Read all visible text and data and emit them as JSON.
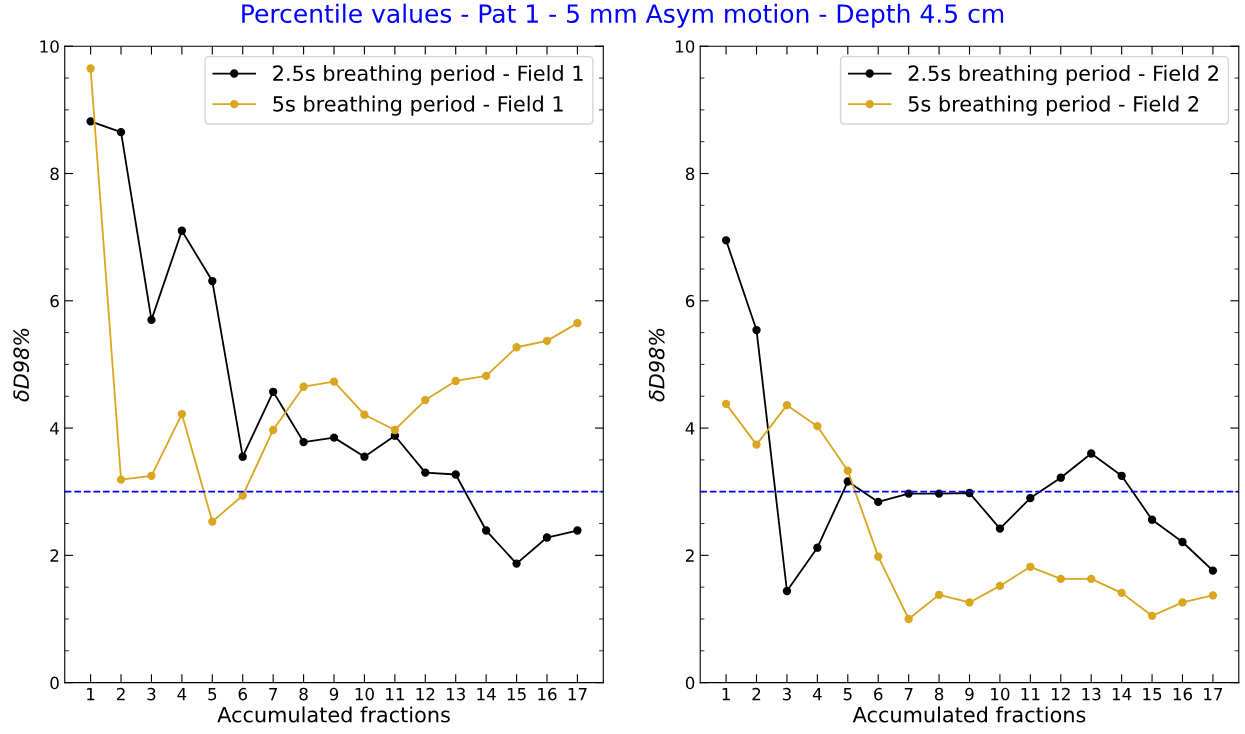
{
  "chart_data": [
    {
      "type": "line",
      "title": "Percentile values - Pat 1 - 5 mm Asym motion - Depth 4.5 cm",
      "xlabel": "Accumulated fractions",
      "ylabel": "δD98%",
      "x": [
        1,
        2,
        3,
        4,
        5,
        6,
        7,
        8,
        9,
        10,
        11,
        12,
        13,
        14,
        15,
        16,
        17
      ],
      "xlim": [
        0.15,
        17.85
      ],
      "xticks": [
        1,
        2,
        3,
        4,
        5,
        6,
        7,
        8,
        9,
        10,
        11,
        12,
        13,
        14,
        15,
        16,
        17
      ],
      "ylim": [
        0,
        10
      ],
      "yticks": [
        0,
        2,
        4,
        6,
        8,
        10
      ],
      "marker": "circle",
      "line_style": "solid",
      "legend": "top right",
      "grid": false,
      "series": [
        {
          "name": "2.5s breathing period - Field 1",
          "color": "#000000",
          "values": [
            8.82,
            8.65,
            5.7,
            7.1,
            6.31,
            3.55,
            4.57,
            3.78,
            3.85,
            3.55,
            3.88,
            3.3,
            3.27,
            2.39,
            1.87,
            2.28,
            2.39
          ]
        },
        {
          "name": "5s breathing period - Field 1",
          "color": "#daa520",
          "values": [
            9.65,
            3.19,
            3.25,
            4.22,
            2.53,
            2.94,
            3.97,
            4.65,
            4.73,
            4.21,
            3.97,
            4.44,
            4.74,
            4.82,
            5.27,
            5.37,
            5.65
          ]
        }
      ],
      "ref_lines": [
        {
          "axis": "y",
          "value": 3,
          "color": "#0000ff",
          "line_style": "dashed"
        }
      ]
    },
    {
      "type": "line",
      "xlabel": "Accumulated fractions",
      "ylabel": "δD98%",
      "x": [
        1,
        2,
        3,
        4,
        5,
        6,
        7,
        8,
        9,
        10,
        11,
        12,
        13,
        14,
        15,
        16,
        17
      ],
      "xlim": [
        0.15,
        17.85
      ],
      "xticks": [
        1,
        2,
        3,
        4,
        5,
        6,
        7,
        8,
        9,
        10,
        11,
        12,
        13,
        14,
        15,
        16,
        17
      ],
      "ylim": [
        0,
        10
      ],
      "yticks": [
        0,
        2,
        4,
        6,
        8,
        10
      ],
      "marker": "circle",
      "line_style": "solid",
      "legend": "top right",
      "grid": false,
      "series": [
        {
          "name": "2.5s breathing period - Field 2",
          "color": "#000000",
          "values": [
            6.95,
            5.54,
            1.44,
            2.12,
            3.16,
            2.84,
            2.97,
            2.97,
            2.98,
            2.42,
            2.9,
            3.22,
            3.6,
            3.25,
            2.56,
            2.21,
            1.76
          ]
        },
        {
          "name": "5s breathing period - Field 2",
          "color": "#daa520",
          "values": [
            4.38,
            3.74,
            4.36,
            4.03,
            3.33,
            1.98,
            1.0,
            1.38,
            1.26,
            1.52,
            1.82,
            1.63,
            1.63,
            1.41,
            1.05,
            1.26,
            1.37
          ]
        }
      ],
      "ref_lines": [
        {
          "axis": "y",
          "value": 3,
          "color": "#0000ff",
          "line_style": "dashed"
        }
      ]
    }
  ]
}
